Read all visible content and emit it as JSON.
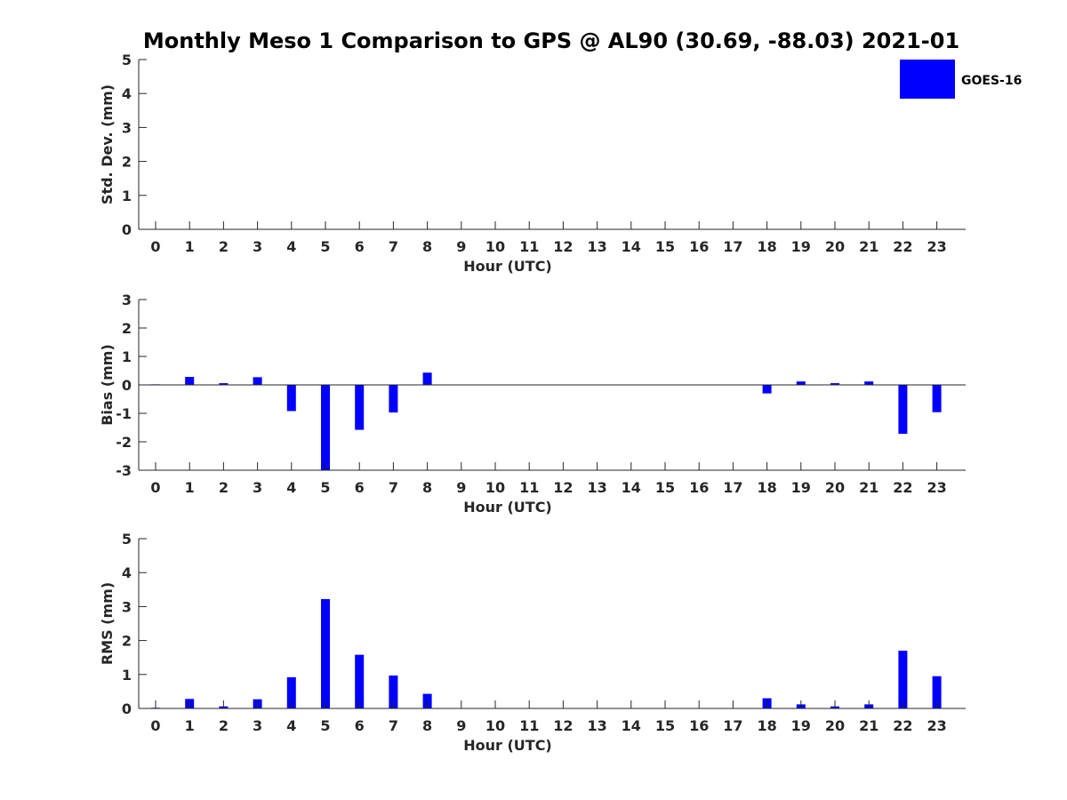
{
  "chart_data": {
    "title": "Monthly Meso 1 Comparison to GPS @ AL90 (30.69, -88.03) 2021-01",
    "colors": {
      "bar": "#0000ff",
      "axis": "#262626",
      "title": "#000000"
    },
    "legend": {
      "label": "GOES-16",
      "placement": "top-right"
    },
    "panels": [
      {
        "type": "bar",
        "xlabel": "Hour (UTC)",
        "ylabel": "Std. Dev. (mm)",
        "ylim": [
          0,
          5
        ],
        "yticks": [
          0,
          1,
          2,
          3,
          4,
          5
        ],
        "categories": [
          "0",
          "1",
          "2",
          "3",
          "4",
          "5",
          "6",
          "7",
          "8",
          "9",
          "10",
          "11",
          "12",
          "13",
          "14",
          "15",
          "16",
          "17",
          "18",
          "19",
          "20",
          "21",
          "22",
          "23"
        ],
        "values": [
          0,
          0,
          0,
          0,
          0,
          0,
          0,
          0,
          0,
          0,
          0,
          0,
          0,
          0,
          0,
          0,
          0,
          0,
          0,
          0,
          0,
          0,
          0,
          0
        ],
        "zero_line": false
      },
      {
        "type": "bar",
        "xlabel": "Hour (UTC)",
        "ylabel": "Bias (mm)",
        "ylim": [
          -3,
          3
        ],
        "yticks": [
          -3,
          -2,
          -1,
          0,
          1,
          2,
          3
        ],
        "categories": [
          "0",
          "1",
          "2",
          "3",
          "4",
          "5",
          "6",
          "7",
          "8",
          "9",
          "10",
          "11",
          "12",
          "13",
          "14",
          "15",
          "16",
          "17",
          "18",
          "19",
          "20",
          "21",
          "22",
          "23"
        ],
        "values": [
          0.02,
          0.28,
          0.06,
          0.27,
          -0.92,
          -3.2,
          -1.58,
          -0.97,
          0.43,
          0,
          0,
          0,
          0,
          0,
          0,
          0,
          0,
          0,
          -0.3,
          0.12,
          0.06,
          0.12,
          -1.72,
          -0.96
        ],
        "zero_line": true
      },
      {
        "type": "bar",
        "xlabel": "Hour (UTC)",
        "ylabel": "RMS (mm)",
        "ylim": [
          0,
          5
        ],
        "yticks": [
          0,
          1,
          2,
          3,
          4,
          5
        ],
        "categories": [
          "0",
          "1",
          "2",
          "3",
          "4",
          "5",
          "6",
          "7",
          "8",
          "9",
          "10",
          "11",
          "12",
          "13",
          "14",
          "15",
          "16",
          "17",
          "18",
          "19",
          "20",
          "21",
          "22",
          "23"
        ],
        "values": [
          0.02,
          0.28,
          0.06,
          0.27,
          0.92,
          3.22,
          1.58,
          0.97,
          0.43,
          0,
          0,
          0,
          0,
          0,
          0,
          0,
          0,
          0,
          0.3,
          0.12,
          0.06,
          0.12,
          1.7,
          0.95
        ],
        "zero_line": false
      }
    ]
  }
}
